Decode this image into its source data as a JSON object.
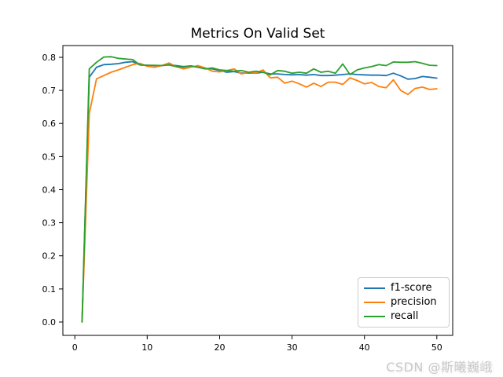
{
  "watermark": "CSDN @斯曦巍峨",
  "chart_data": {
    "type": "line",
    "title": "Metrics On Valid Set",
    "xlabel": "",
    "ylabel": "",
    "grid": false,
    "legend_position": "lower right",
    "xlim": [
      -1.65,
      52.19
    ],
    "ylim": [
      -0.0404,
      0.8356
    ],
    "xticks": [
      0,
      10,
      20,
      30,
      40,
      50
    ],
    "yticks": [
      0.0,
      0.1,
      0.2,
      0.3,
      0.4,
      0.5,
      0.6,
      0.7,
      0.8
    ],
    "ytick_labels": [
      "0.0",
      "0.1",
      "0.2",
      "0.3",
      "0.4",
      "0.5",
      "0.6",
      "0.7",
      "0.8"
    ],
    "x": [
      1,
      2,
      3,
      4,
      5,
      6,
      7,
      8,
      9,
      10,
      11,
      12,
      13,
      14,
      15,
      16,
      17,
      18,
      19,
      20,
      21,
      22,
      23,
      24,
      25,
      26,
      27,
      28,
      29,
      30,
      31,
      32,
      33,
      34,
      35,
      36,
      37,
      38,
      39,
      40,
      41,
      42,
      43,
      44,
      45,
      46,
      47,
      48,
      49,
      50
    ],
    "series": [
      {
        "name": "f1-score",
        "color": "#1f77b4",
        "values": [
          0.0,
          0.74,
          0.77,
          0.778,
          0.779,
          0.781,
          0.785,
          0.787,
          0.777,
          0.776,
          0.775,
          0.775,
          0.778,
          0.775,
          0.772,
          0.774,
          0.77,
          0.766,
          0.765,
          0.76,
          0.755,
          0.757,
          0.752,
          0.753,
          0.752,
          0.755,
          0.75,
          0.75,
          0.748,
          0.747,
          0.748,
          0.746,
          0.748,
          0.745,
          0.745,
          0.746,
          0.748,
          0.75,
          0.748,
          0.747,
          0.746,
          0.746,
          0.745,
          0.752,
          0.744,
          0.734,
          0.736,
          0.742,
          0.74,
          0.737
        ]
      },
      {
        "name": "precision",
        "color": "#ff7f0e",
        "values": [
          0.0,
          0.63,
          0.735,
          0.745,
          0.755,
          0.762,
          0.77,
          0.778,
          0.782,
          0.773,
          0.77,
          0.775,
          0.783,
          0.772,
          0.765,
          0.77,
          0.775,
          0.768,
          0.758,
          0.756,
          0.76,
          0.765,
          0.75,
          0.755,
          0.752,
          0.762,
          0.738,
          0.74,
          0.722,
          0.728,
          0.72,
          0.71,
          0.722,
          0.712,
          0.725,
          0.725,
          0.718,
          0.738,
          0.73,
          0.72,
          0.724,
          0.712,
          0.708,
          0.732,
          0.7,
          0.688,
          0.706,
          0.71,
          0.703,
          0.705
        ]
      },
      {
        "name": "recall",
        "color": "#2ca02c",
        "values": [
          0.0,
          0.765,
          0.785,
          0.801,
          0.802,
          0.797,
          0.795,
          0.793,
          0.777,
          0.776,
          0.776,
          0.775,
          0.777,
          0.772,
          0.77,
          0.774,
          0.77,
          0.765,
          0.768,
          0.762,
          0.76,
          0.758,
          0.76,
          0.755,
          0.758,
          0.755,
          0.747,
          0.76,
          0.758,
          0.752,
          0.755,
          0.752,
          0.765,
          0.755,
          0.758,
          0.752,
          0.78,
          0.748,
          0.762,
          0.768,
          0.772,
          0.778,
          0.775,
          0.786,
          0.785,
          0.785,
          0.787,
          0.782,
          0.776,
          0.775
        ]
      }
    ]
  }
}
